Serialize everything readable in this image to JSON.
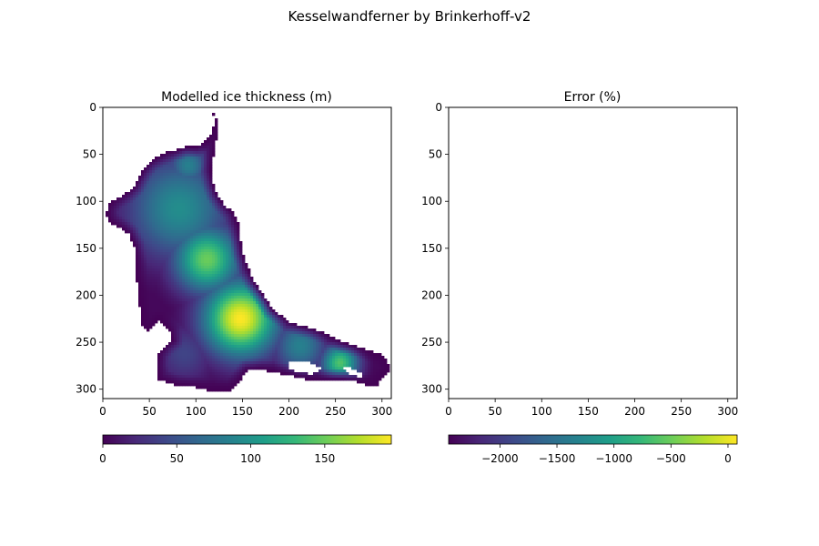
{
  "figure": {
    "suptitle": "Kesselwandferner by Brinkerhoff-v2"
  },
  "colormap": [
    "#440154",
    "#482878",
    "#3e4989",
    "#31688e",
    "#26828e",
    "#1f9e89",
    "#35b779",
    "#6ece58",
    "#b5de2b",
    "#fde725"
  ],
  "chart_data": [
    {
      "type": "heatmap",
      "title": "Modelled ice thickness (m)",
      "xlim": [
        0,
        310
      ],
      "ylim": [
        310,
        0
      ],
      "xticks": [
        "0",
        "50",
        "100",
        "150",
        "200",
        "250",
        "300"
      ],
      "yticks": [
        "0",
        "50",
        "100",
        "150",
        "200",
        "250",
        "300"
      ],
      "grid": false,
      "colorbar": {
        "orientation": "horizontal",
        "range": [
          0,
          195
        ],
        "ticks": [
          "0",
          "50",
          "100",
          "150"
        ],
        "tick_values": [
          0,
          50,
          100,
          150
        ]
      },
      "outline": [
        [
          118,
          6
        ],
        [
          120,
          12
        ],
        [
          118,
          25
        ],
        [
          112,
          35
        ],
        [
          100,
          42
        ],
        [
          88,
          42
        ],
        [
          80,
          45
        ],
        [
          70,
          47
        ],
        [
          60,
          52
        ],
        [
          50,
          58
        ],
        [
          42,
          68
        ],
        [
          38,
          76
        ],
        [
          34,
          84
        ],
        [
          24,
          92
        ],
        [
          12,
          98
        ],
        [
          5,
          105
        ],
        [
          4,
          115
        ],
        [
          8,
          122
        ],
        [
          12,
          125
        ],
        [
          22,
          130
        ],
        [
          28,
          135
        ],
        [
          34,
          148
        ],
        [
          36,
          165
        ],
        [
          36,
          180
        ],
        [
          38,
          200
        ],
        [
          40,
          215
        ],
        [
          42,
          232
        ],
        [
          48,
          238
        ],
        [
          56,
          232
        ],
        [
          60,
          228
        ],
        [
          66,
          232
        ],
        [
          72,
          238
        ],
        [
          75,
          248
        ],
        [
          68,
          253
        ],
        [
          60,
          262
        ],
        [
          58,
          275
        ],
        [
          60,
          290
        ],
        [
          80,
          296
        ],
        [
          100,
          298
        ],
        [
          120,
          303
        ],
        [
          138,
          302
        ],
        [
          146,
          293
        ],
        [
          155,
          280
        ],
        [
          170,
          279
        ],
        [
          185,
          282
        ],
        [
          200,
          285
        ],
        [
          214,
          289
        ],
        [
          228,
          290
        ],
        [
          242,
          290
        ],
        [
          258,
          290
        ],
        [
          272,
          292
        ],
        [
          285,
          296
        ],
        [
          294,
          298
        ],
        [
          296,
          292
        ],
        [
          302,
          287
        ],
        [
          308,
          280
        ],
        [
          306,
          270
        ],
        [
          300,
          263
        ],
        [
          290,
          260
        ],
        [
          282,
          257
        ],
        [
          270,
          253
        ],
        [
          258,
          250
        ],
        [
          248,
          245
        ],
        [
          238,
          240
        ],
        [
          224,
          235
        ],
        [
          212,
          232
        ],
        [
          200,
          228
        ],
        [
          192,
          222
        ],
        [
          182,
          215
        ],
        [
          176,
          205
        ],
        [
          170,
          196
        ],
        [
          162,
          185
        ],
        [
          155,
          168
        ],
        [
          150,
          155
        ],
        [
          148,
          140
        ],
        [
          146,
          125
        ],
        [
          140,
          112
        ],
        [
          130,
          103
        ],
        [
          122,
          92
        ],
        [
          118,
          80
        ],
        [
          116,
          68
        ],
        [
          118,
          55
        ],
        [
          121,
          42
        ],
        [
          123,
          25
        ],
        [
          122,
          12
        ],
        [
          120,
          6
        ]
      ],
      "holes": [
        [
          [
            198,
            272
          ],
          [
            210,
            270
          ],
          [
            225,
            272
          ],
          [
            235,
            278
          ],
          [
            226,
            284
          ],
          [
            210,
            282
          ],
          [
            200,
            278
          ]
        ],
        [
          [
            160,
            279
          ],
          [
            168,
            278
          ],
          [
            170,
            283
          ],
          [
            162,
            284
          ]
        ],
        [
          [
            258,
            276
          ],
          [
            270,
            278
          ],
          [
            282,
            286
          ],
          [
            274,
            287
          ],
          [
            262,
            282
          ]
        ]
      ],
      "thickness_peaks": [
        {
          "x": 148,
          "y": 225,
          "value": 195,
          "radius": 28
        },
        {
          "x": 112,
          "y": 162,
          "value": 150,
          "radius": 25
        },
        {
          "x": 82,
          "y": 108,
          "value": 95,
          "radius": 38
        },
        {
          "x": 92,
          "y": 62,
          "value": 85,
          "radius": 15
        },
        {
          "x": 255,
          "y": 272,
          "value": 140,
          "radius": 14
        },
        {
          "x": 212,
          "y": 254,
          "value": 85,
          "radius": 20
        },
        {
          "x": 88,
          "y": 262,
          "value": 40,
          "radius": 22
        }
      ]
    },
    {
      "type": "heatmap",
      "title": "Error (%)",
      "xlim": [
        0,
        310
      ],
      "ylim": [
        310,
        0
      ],
      "xticks": [
        "0",
        "50",
        "100",
        "150",
        "200",
        "250",
        "300"
      ],
      "yticks": [
        "0",
        "50",
        "100",
        "150",
        "200",
        "250",
        "300"
      ],
      "grid": false,
      "values": [],
      "colorbar": {
        "orientation": "horizontal",
        "range": [
          -2450,
          80
        ],
        "ticks": [
          "−2000",
          "−1500",
          "−1000",
          "−500",
          "0"
        ],
        "tick_values": [
          -2000,
          -1500,
          -1000,
          -500,
          0
        ]
      }
    }
  ]
}
